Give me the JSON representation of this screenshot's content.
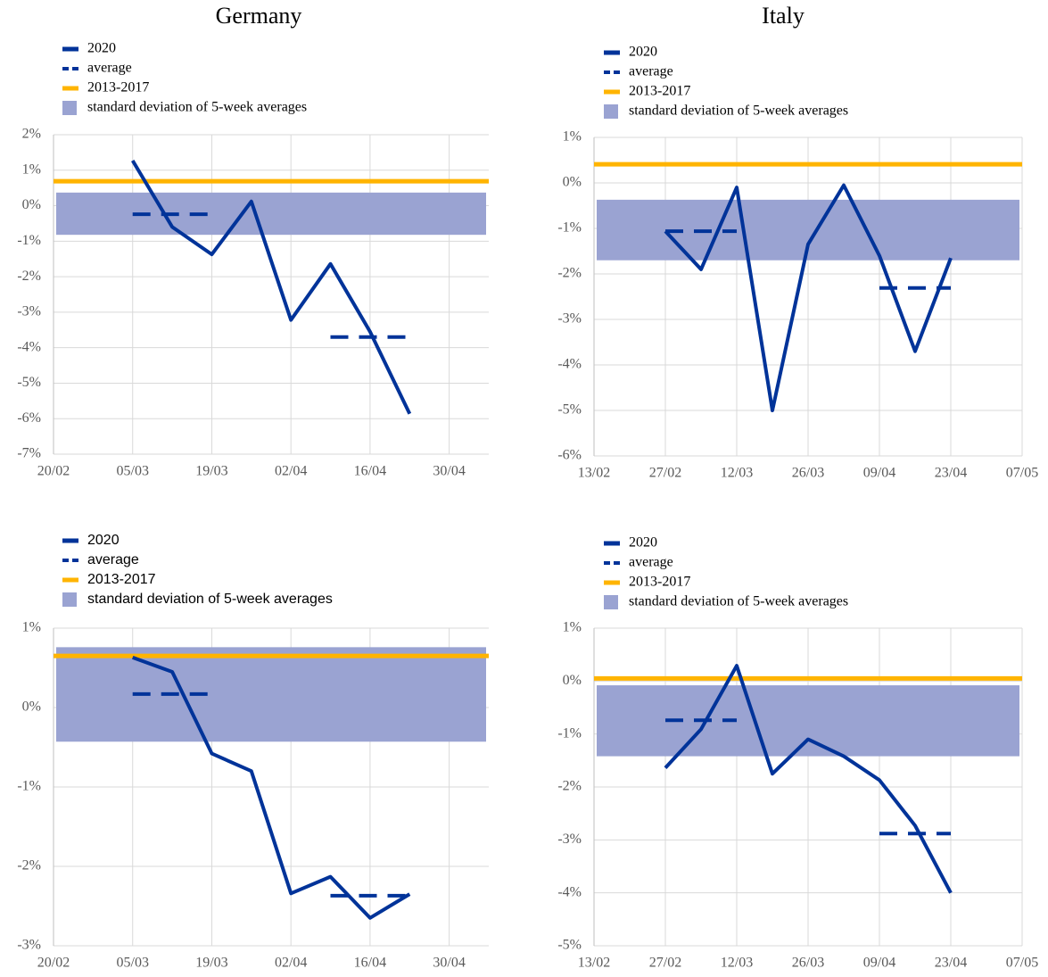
{
  "chart_data": [
    {
      "type": "line",
      "title": "Germany",
      "x": [
        "05/03",
        "12/03",
        "19/03",
        "26/03",
        "02/04",
        "09/04",
        "16/04",
        "23/04"
      ],
      "series": [
        {
          "name": "2020",
          "color": "#003399",
          "values": [
            1.27,
            -0.6,
            -1.37,
            0.12,
            -3.22,
            -1.64,
            -3.55,
            -5.86
          ]
        },
        {
          "name": "average",
          "color": "#003399",
          "dashed": true,
          "values": [
            -0.24,
            -0.24,
            -0.24,
            null,
            null,
            -3.7,
            -3.7,
            -3.7
          ]
        },
        {
          "name": "2013-2017",
          "color": "#ffb400",
          "value": 0.69
        },
        {
          "name": "standard deviation of 5-week averages",
          "color": "#9aa3d2",
          "low": -0.82,
          "high": 0.37
        }
      ],
      "xlim": [
        "20/02",
        "07/05"
      ],
      "xticks": [
        "20/02",
        "05/03",
        "19/03",
        "02/04",
        "16/04",
        "30/04"
      ],
      "ylim": [
        -7,
        2
      ],
      "yticks": [
        {
          "value": -7,
          "label": "-7%"
        },
        {
          "value": -6,
          "label": "-6%"
        },
        {
          "value": -5,
          "label": "-5%"
        },
        {
          "value": -4,
          "label": "-4%"
        },
        {
          "value": -3,
          "label": "-3%"
        },
        {
          "value": -2,
          "label": "-2%"
        },
        {
          "value": -1,
          "label": "-1%"
        },
        {
          "value": 0,
          "label": "0%"
        },
        {
          "value": 1,
          "label": "1%"
        },
        {
          "value": 2,
          "label": "2%"
        }
      ],
      "grid": true
    },
    {
      "type": "line",
      "title": "Italy",
      "x": [
        "27/02",
        "05/03",
        "12/03",
        "19/03",
        "26/03",
        "02/04",
        "09/04",
        "16/04",
        "23/04"
      ],
      "series": [
        {
          "name": "2020",
          "color": "#003399",
          "values": [
            -1.06,
            -1.9,
            -0.1,
            -5.0,
            -1.35,
            -0.05,
            -1.6,
            -3.7,
            -1.65
          ]
        },
        {
          "name": "average",
          "color": "#003399",
          "dashed": true,
          "values": [
            -1.06,
            -1.06,
            -1.06,
            null,
            null,
            null,
            -2.31,
            -2.31,
            -2.31
          ]
        },
        {
          "name": "2013-2017",
          "color": "#ffb400",
          "value": 0.41
        },
        {
          "name": "standard deviation of 5-week averages",
          "color": "#9aa3d2",
          "low": -1.7,
          "high": -0.37
        }
      ],
      "xlim": [
        "13/02",
        "07/05"
      ],
      "xticks": [
        "13/02",
        "27/02",
        "12/03",
        "26/03",
        "09/04",
        "23/04",
        "07/05"
      ],
      "ylim": [
        -6,
        1
      ],
      "yticks": [
        {
          "value": -6,
          "label": "-6%"
        },
        {
          "value": -5,
          "label": "-5%"
        },
        {
          "value": -4,
          "label": "-4%"
        },
        {
          "value": -3,
          "label": "-3%"
        },
        {
          "value": -2,
          "label": "-2%"
        },
        {
          "value": -1,
          "label": "-1%"
        },
        {
          "value": 0,
          "label": "0%"
        },
        {
          "value": 1,
          "label": "1%"
        }
      ],
      "grid": true
    },
    {
      "type": "line",
      "x": [
        "05/03",
        "12/03",
        "19/03",
        "26/03",
        "02/04",
        "09/04",
        "16/04",
        "23/04"
      ],
      "series": [
        {
          "name": "2020",
          "color": "#003399",
          "values": [
            0.63,
            0.45,
            -0.58,
            -0.8,
            -2.34,
            -2.13,
            -2.65,
            -2.35
          ]
        },
        {
          "name": "average",
          "color": "#003399",
          "dashed": true,
          "values": [
            0.17,
            0.17,
            0.17,
            null,
            null,
            -2.37,
            -2.37,
            -2.37
          ]
        },
        {
          "name": "2013-2017",
          "color": "#ffb400",
          "value": 0.65
        },
        {
          "name": "standard deviation of 5-week averages",
          "color": "#9aa3d2",
          "low": -0.43,
          "high": 0.76
        }
      ],
      "xlim": [
        "20/02",
        "07/05"
      ],
      "xticks": [
        "20/02",
        "05/03",
        "19/03",
        "02/04",
        "16/04",
        "30/04"
      ],
      "ylim": [
        -3,
        1
      ],
      "yticks": [
        {
          "value": -3,
          "label": "-3%"
        },
        {
          "value": -2,
          "label": "-2%"
        },
        {
          "value": -1,
          "label": "-1%"
        },
        {
          "value": 0,
          "label": "0%"
        },
        {
          "value": 1,
          "label": "1%"
        }
      ],
      "grid": true
    },
    {
      "type": "line",
      "x": [
        "27/02",
        "05/03",
        "12/03",
        "19/03",
        "26/03",
        "02/04",
        "09/04",
        "16/04",
        "23/04"
      ],
      "series": [
        {
          "name": "2020",
          "color": "#003399",
          "values": [
            -1.64,
            -0.91,
            0.29,
            -1.75,
            -1.1,
            -1.42,
            -1.87,
            -2.73,
            -4.0
          ]
        },
        {
          "name": "average",
          "color": "#003399",
          "dashed": true,
          "values": [
            -0.74,
            -0.74,
            -0.74,
            null,
            null,
            null,
            -2.88,
            -2.88,
            -2.88
          ]
        },
        {
          "name": "2013-2017",
          "color": "#ffb400",
          "value": 0.05
        },
        {
          "name": "standard deviation of 5-week averages",
          "color": "#9aa3d2",
          "low": -1.42,
          "high": -0.08
        }
      ],
      "xlim": [
        "13/02",
        "07/05"
      ],
      "xticks": [
        "13/02",
        "27/02",
        "12/03",
        "26/03",
        "09/04",
        "23/04",
        "07/05"
      ],
      "ylim": [
        -5,
        1
      ],
      "yticks": [
        {
          "value": -5,
          "label": "-5%"
        },
        {
          "value": -4,
          "label": "-4%"
        },
        {
          "value": -3,
          "label": "-3%"
        },
        {
          "value": -2,
          "label": "-2%"
        },
        {
          "value": -1,
          "label": "-1%"
        },
        {
          "value": 0,
          "label": "0%"
        },
        {
          "value": 1,
          "label": "1%"
        }
      ],
      "grid": true
    }
  ]
}
